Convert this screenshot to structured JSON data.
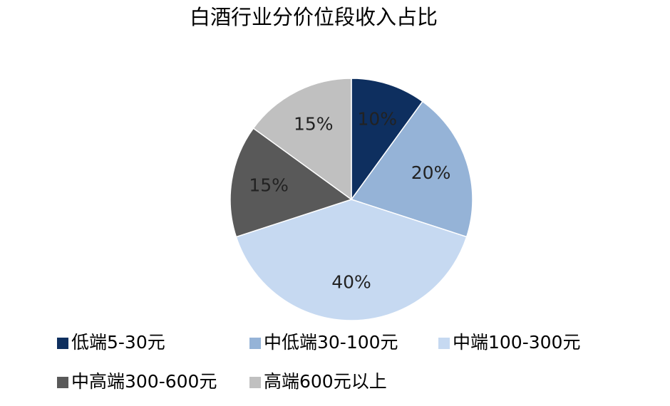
{
  "chart_data": {
    "type": "pie",
    "title": "白酒行业分价位段收入占比",
    "categories": [
      "低端5-30元",
      "中低端30-100元",
      "中端100-300元",
      "中高端300-600元",
      "高端600元以上"
    ],
    "values": [
      10,
      20,
      40,
      15,
      15
    ],
    "value_labels": [
      "10%",
      "20%",
      "40%",
      "15%",
      "15%"
    ],
    "colors": [
      "#0e2f5f",
      "#95b3d7",
      "#c6d9f1",
      "#595959",
      "#c0c0c0"
    ]
  }
}
